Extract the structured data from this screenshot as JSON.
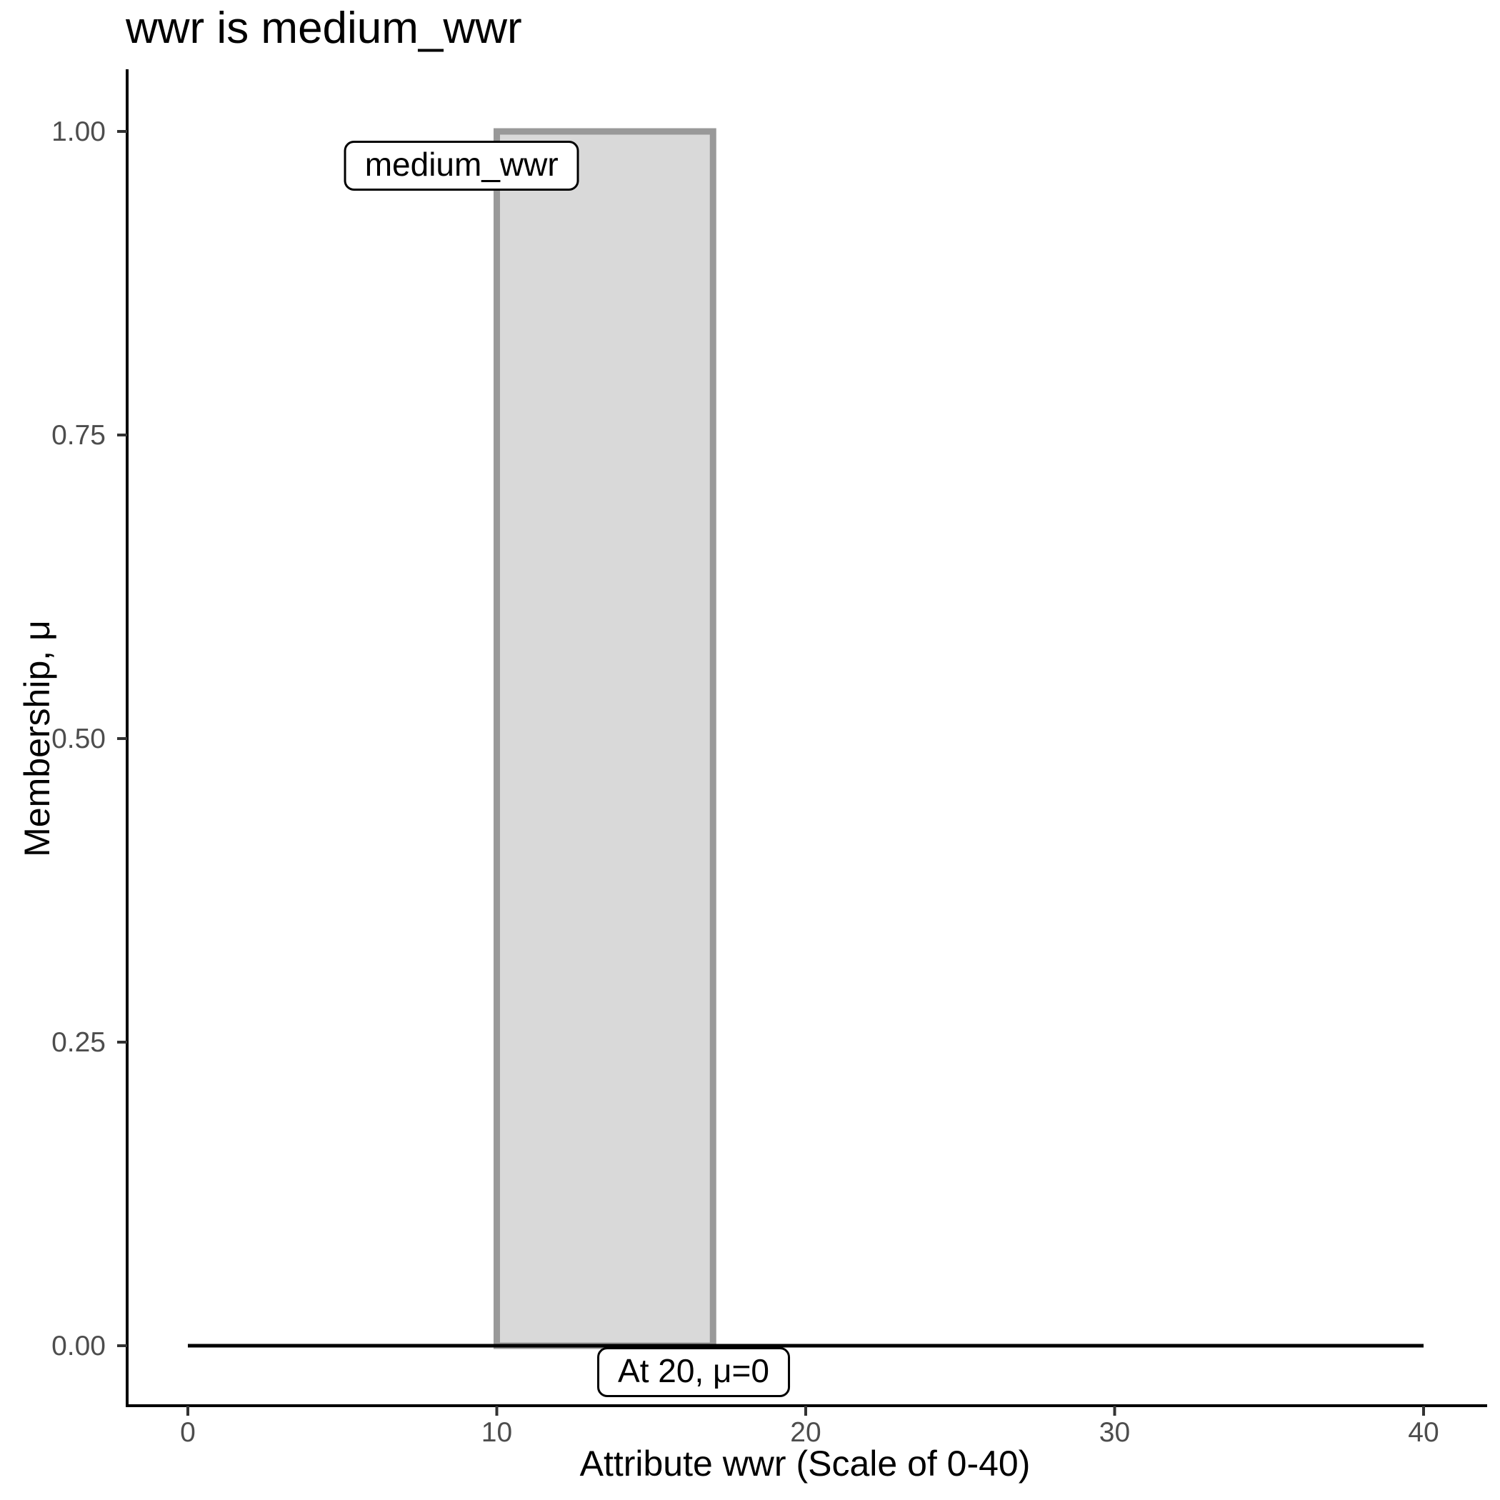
{
  "chart": {
    "title": "wwr is medium_wwr",
    "x_axis_label": "Attribute wwr (Scale of 0-40)",
    "y_axis_label": "Membership, μ"
  },
  "chart_data": {
    "type": "area",
    "title": "wwr is medium_wwr",
    "xlabel": "Attribute wwr (Scale of 0-40)",
    "ylabel": "Membership, μ",
    "xlim": [
      0,
      40
    ],
    "ylim": [
      0,
      1
    ],
    "grid": false,
    "legend": false,
    "x_ticks": [
      {
        "value": 0,
        "label": "0"
      },
      {
        "value": 10,
        "label": "10"
      },
      {
        "value": 20,
        "label": "20"
      },
      {
        "value": 30,
        "label": "30"
      },
      {
        "value": 40,
        "label": "40"
      }
    ],
    "y_ticks": [
      {
        "value": 0.0,
        "label": "0.00"
      },
      {
        "value": 0.25,
        "label": "0.25"
      },
      {
        "value": 0.5,
        "label": "0.50"
      },
      {
        "value": 0.75,
        "label": "0.75"
      },
      {
        "value": 1.0,
        "label": "1.00"
      }
    ],
    "series": [
      {
        "name": "medium_wwr",
        "shape": "rectangular_membership",
        "x_from": 10,
        "x_to": 17,
        "mu": 1,
        "points": [
          [
            0,
            0
          ],
          [
            10,
            0
          ],
          [
            10,
            1
          ],
          [
            17,
            1
          ],
          [
            17,
            0
          ],
          [
            40,
            0
          ]
        ],
        "fill": "#d9d9d9",
        "stroke": "#999999"
      }
    ],
    "baseline": {
      "x_from": 0,
      "x_to": 40,
      "mu": 0,
      "color": "#000000"
    },
    "annotations": [
      {
        "text": "medium_wwr",
        "x": 8.86,
        "mu": 0.972
      },
      {
        "text": "At 20, μ=0",
        "x": 16.37,
        "mu": -0.022
      }
    ],
    "colors": {
      "axis": "#000000",
      "tick_mark": "#333333",
      "tick_label": "#4d4d4d",
      "panel_background": "#ffffff"
    }
  }
}
